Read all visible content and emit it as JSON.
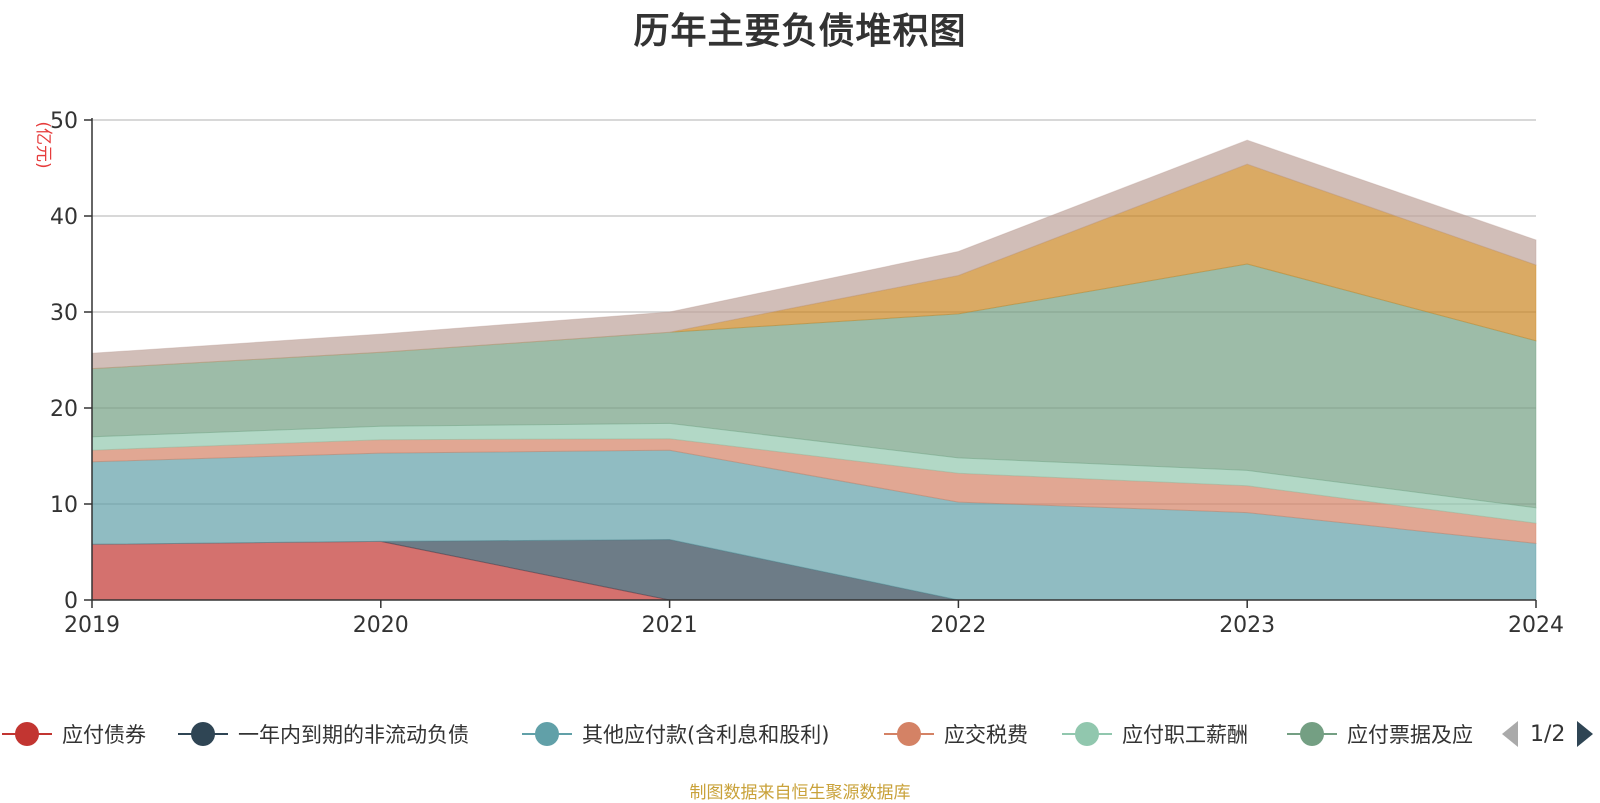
{
  "chart_data": {
    "type": "area",
    "stacked": true,
    "title": "历年主要负债堆积图",
    "unit_label": "(亿元)",
    "x": [
      "2019",
      "2020",
      "2021",
      "2022",
      "2023",
      "2024"
    ],
    "ylim": [
      0,
      50
    ],
    "yticks": [
      "0",
      "10",
      "20",
      "30",
      "40",
      "50"
    ],
    "grid": true,
    "series": [
      {
        "name": "应付债券",
        "color": "#c23531",
        "values": [
          5.8,
          6.1,
          0,
          0,
          0,
          0
        ]
      },
      {
        "name": "一年内到期的非流动负债",
        "color": "#2f4554",
        "values": [
          0,
          0,
          6.3,
          0,
          0,
          0
        ]
      },
      {
        "name": "其他应付款(含利息和股利)",
        "color": "#61a0a8",
        "values": [
          8.6,
          9.2,
          9.3,
          10.2,
          9.1,
          5.9
        ]
      },
      {
        "name": "应交税费",
        "color": "#d48265",
        "values": [
          1.2,
          1.4,
          1.2,
          3.0,
          2.8,
          2.1
        ]
      },
      {
        "name": "应付职工薪酬",
        "color": "#91c7ae",
        "values": [
          1.4,
          1.4,
          1.6,
          1.6,
          1.6,
          1.6
        ]
      },
      {
        "name": "应付票据及应付账款",
        "color": "#749f83",
        "values": [
          7.1,
          7.7,
          9.5,
          15.0,
          21.5,
          17.4
        ]
      },
      {
        "name": "",
        "color": "#ca8622",
        "values": [
          0,
          0,
          0,
          4.0,
          10.4,
          7.9
        ]
      },
      {
        "name": "",
        "color": "#bda29a",
        "values": [
          1.6,
          1.9,
          2.1,
          2.5,
          2.5,
          2.6
        ]
      }
    ]
  },
  "legend": {
    "visible_items": [
      {
        "label": "应付债券",
        "color": "#c23531"
      },
      {
        "label": "一年内到期的非流动负债",
        "color": "#2f4554"
      },
      {
        "label": "其他应付款(含利息和股利)",
        "color": "#61a0a8"
      },
      {
        "label": "应交税费",
        "color": "#d48265"
      },
      {
        "label": "应付职工薪酬",
        "color": "#91c7ae"
      },
      {
        "label": "应付票据及应",
        "color": "#749f83"
      }
    ],
    "page_indicator": "1/2",
    "prev_icon": "triangle-left-icon",
    "next_icon": "triangle-right-icon"
  },
  "source_note": "制图数据来自恒生聚源数据库"
}
